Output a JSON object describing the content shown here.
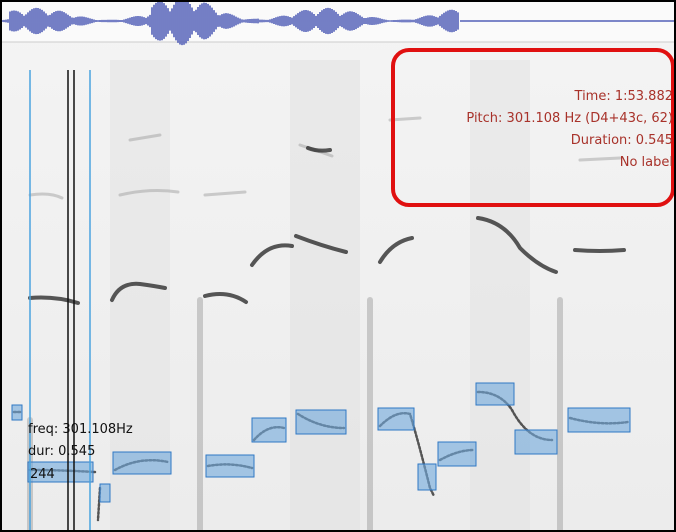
{
  "overlay": {
    "time": "Time: 1:53.882",
    "pitch": "Pitch: 301.108 Hz (D4+43c, 62)",
    "duration": "Duration: 0.545",
    "label": "No label"
  },
  "cursor_label": {
    "freq": "freq: 301.108Hz",
    "dur": "dur: 0.545",
    "value": "244"
  }
}
